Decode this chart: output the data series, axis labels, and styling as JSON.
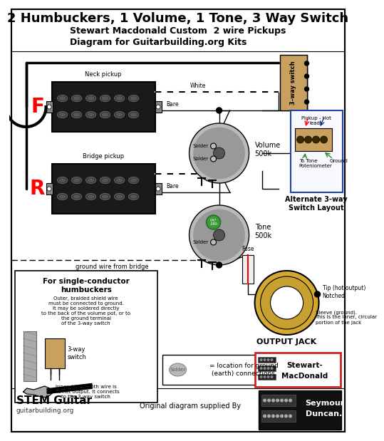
{
  "title": "2 Humbuckers, 1 Volume, 1 Tone, 3 Way Switch",
  "subtitle1": "Stewart Macdonald Custom  2 wire Pickups",
  "subtitle2": "Diagram for Guitarbuilding.org Kits",
  "bg_color": "#ffffff",
  "lc": "#000000",
  "neck_label": "Neck pickup",
  "bridge_label": "Bridge pickup",
  "F_label": "F",
  "R_label": "R",
  "volume_label": "Volume\n500k",
  "tone_label": "Tone\n500k",
  "output_jack_label": "OUTPUT JACK",
  "tip_label": "Tip (hot output)\nNotched",
  "sleeve_label": "Sleeve (ground).\nThis is the inner, circular\nportion of the jack",
  "ground_wire_label": "ground wire from bridge",
  "fuse_label": "Fuse",
  "white_label": "White",
  "bare_label": "Bare",
  "solder_text": "Solder",
  "switch_label": "3-way switch",
  "pickup_hot_label": "Pickup - Hot\nleads",
  "to_tone_label": "To Tone\nPoteniometer",
  "ground_label": "Ground",
  "alternate_label": "Alternate 3-way\nSwitch Layout",
  "sc_title": "For single-conductor\nhumbuckers",
  "sc_text1": "Outer, braided shield wire\nmust be connected to ground.\nIt may be soldered directly\nto the back of the volume pot, or to\nthe ground terminal\nof the 3-way switch",
  "sc_text2": "Inner, black cloth wire is\nthe hot output. It connects\nto the 3-way switch",
  "threeway_label": "3-way\nswitch",
  "solder_legend": "= location for ground\n(earth) connections.",
  "original_text": "Original diagram supplied By",
  "stem_guitar": "STEM Guitar",
  "guitarbuilding": "guitarbuilding.org",
  "stewart_label": "Stewart-\nMacDonald",
  "seymour_label": "Seymour\nDuncan.",
  "switch_color": "#c8a060",
  "pickup_dark": "#1a1a1a",
  "pickup_body": "#2a2a2a",
  "pickup_chrome": "#888888",
  "pot_outer": "#bbbbbb",
  "pot_mid": "#999999",
  "pot_inner": "#555555",
  "jack_outer": "#d4a830",
  "jack_ring": "#c8a030",
  "jack_center": "#ffffff",
  "solder_green": "#3a9a3a",
  "cap_green": "#2a8a2a",
  "sd_bg": "#111111",
  "stewart_red": "#cc2222",
  "wire_lw": 1.0,
  "border_lw": 1.5
}
